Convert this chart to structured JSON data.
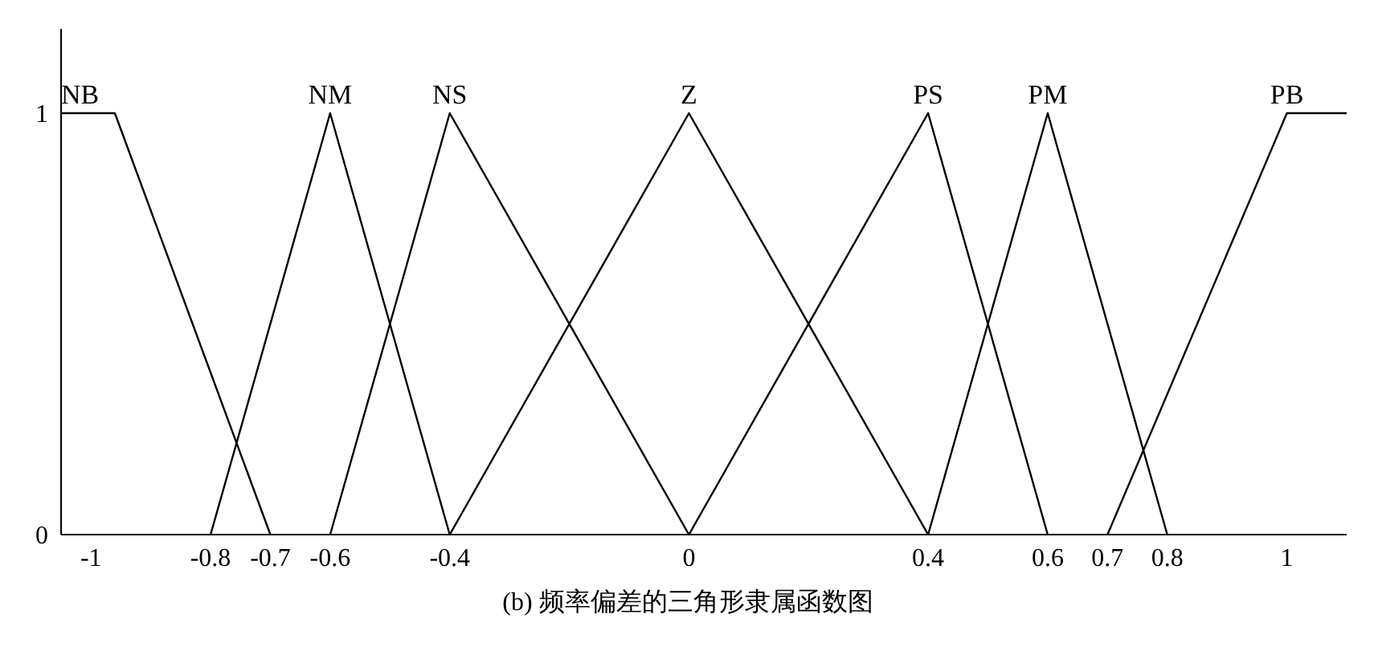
{
  "chart_data": {
    "type": "line",
    "annotations": [
      "(b) 频率偏差的三角形隶属函数图"
    ],
    "xlim": [
      -1.05,
      1.1
    ],
    "xticks": [
      -1,
      -0.8,
      -0.7,
      -0.6,
      -0.4,
      0,
      0.4,
      0.6,
      0.7,
      0.8,
      1
    ],
    "ylim": [
      0,
      1.2
    ],
    "yticks": [
      0,
      1
    ],
    "grid": false,
    "legend": false,
    "marker": "none",
    "line_style": "solid",
    "series": [
      {
        "name": "NB",
        "color": "#000000",
        "x": [
          -1.05,
          -0.96,
          -0.7
        ],
        "values": [
          1,
          1,
          0
        ]
      },
      {
        "name": "NM",
        "color": "#000000",
        "x": [
          -0.8,
          -0.6,
          -0.4
        ],
        "values": [
          0,
          1,
          0
        ]
      },
      {
        "name": "NS",
        "color": "#000000",
        "x": [
          -0.6,
          -0.4,
          0
        ],
        "values": [
          0,
          1,
          0
        ]
      },
      {
        "name": "Z",
        "color": "#000000",
        "x": [
          -0.4,
          0,
          0.4
        ],
        "values": [
          0,
          1,
          0
        ]
      },
      {
        "name": "PS",
        "color": "#000000",
        "x": [
          0,
          0.4,
          0.6
        ],
        "values": [
          0,
          1,
          0
        ]
      },
      {
        "name": "PM",
        "color": "#000000",
        "x": [
          0.4,
          0.6,
          0.8
        ],
        "values": [
          0,
          1,
          0
        ]
      },
      {
        "name": "PB",
        "color": "#000000",
        "x": [
          0.7,
          1,
          1.1
        ],
        "values": [
          0,
          1,
          1
        ]
      }
    ]
  }
}
